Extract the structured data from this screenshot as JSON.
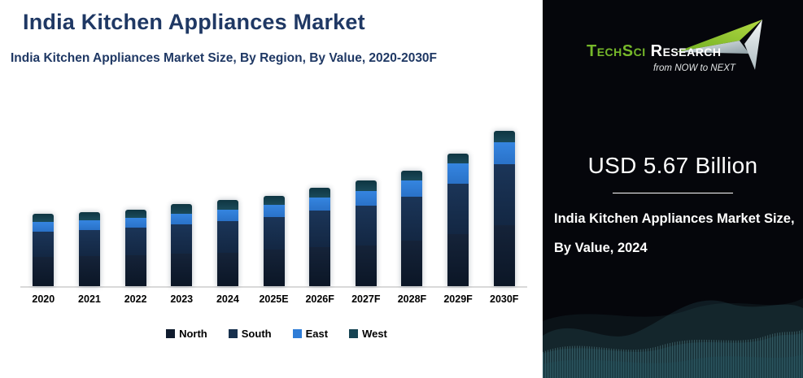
{
  "page": {
    "title": "India Kitchen Appliances Market",
    "subtitle": "India Kitchen Appliances Market Size, By Region, By Value, 2020-2030F"
  },
  "colors": {
    "title_text": "#1f3864",
    "north": "#101c2e",
    "south": "#17304d",
    "east": "#2f7dd7",
    "west": "#164453",
    "axis_line": "#d9d9d9",
    "panel_background": "#05060b",
    "logo_green": "#76b82a",
    "wave_teal": "#2e6b78"
  },
  "chart_data": {
    "type": "bar",
    "stacked": true,
    "title": "India Kitchen Appliances Market Size, By Region, By Value, 2020-2030F",
    "unit": "USD Billion",
    "grid": false,
    "y_axis_visible": false,
    "legend_position": "bottom",
    "categories": [
      "2020",
      "2021",
      "2022",
      "2023",
      "2024",
      "2025E",
      "2026F",
      "2027F",
      "2028F",
      "2029F",
      "2030F"
    ],
    "series": [
      {
        "name": "North",
        "color": "#101c2e",
        "values": [
          1.93,
          1.98,
          2.03,
          2.14,
          2.19,
          2.41,
          2.57,
          2.67,
          3.0,
          3.42,
          4.01
        ]
      },
      {
        "name": "South",
        "color": "#17304d",
        "values": [
          1.66,
          1.71,
          1.82,
          1.93,
          2.09,
          2.14,
          2.41,
          2.62,
          2.89,
          3.32,
          4.01
        ]
      },
      {
        "name": "East",
        "color": "#2f7dd7",
        "values": [
          0.64,
          0.64,
          0.64,
          0.7,
          0.75,
          0.8,
          0.86,
          0.96,
          1.07,
          1.34,
          1.44
        ]
      },
      {
        "name": "West",
        "color": "#164453",
        "values": [
          0.53,
          0.53,
          0.53,
          0.64,
          0.64,
          0.59,
          0.64,
          0.7,
          0.64,
          0.64,
          0.75
        ]
      }
    ],
    "totals_usd_billion": [
      4.76,
      4.86,
      5.02,
      5.41,
      5.67,
      5.94,
      6.48,
      6.95,
      7.6,
      8.72,
      10.21
    ],
    "anchor_label": {
      "year": "2024",
      "total": "USD 5.67 Billion"
    }
  },
  "side_panel": {
    "logo": {
      "brand_primary": "TechSci",
      "brand_secondary": "Research",
      "tagline": "from NOW to NEXT"
    },
    "headline_value": "USD 5.67 Billion",
    "caption_line1": "India Kitchen Appliances Market Size,",
    "caption_line2": "By Value, 2024"
  }
}
